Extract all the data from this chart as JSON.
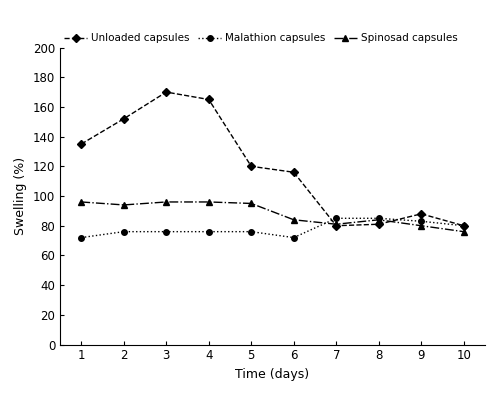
{
  "days": [
    1,
    2,
    3,
    4,
    5,
    6,
    7,
    8,
    9,
    10
  ],
  "unloaded": [
    135,
    152,
    170,
    165,
    120,
    116,
    80,
    81,
    88,
    80
  ],
  "malathion": [
    72,
    76,
    76,
    76,
    76,
    72,
    85,
    85,
    83,
    80
  ],
  "spinosad": [
    96,
    94,
    96,
    96,
    95,
    84,
    81,
    84,
    80,
    76
  ],
  "unloaded_label": "Unloaded capsules",
  "malathion_label": "Malathion capsules",
  "spinosad_label": "Spinosad capsules",
  "xlabel": "Time (days)",
  "ylabel": "Swelling (%)",
  "ylim": [
    0,
    200
  ],
  "xlim": [
    0.5,
    10.5
  ],
  "yticks": [
    0,
    20,
    40,
    60,
    80,
    100,
    120,
    140,
    160,
    180,
    200
  ],
  "xticks": [
    1,
    2,
    3,
    4,
    5,
    6,
    7,
    8,
    9,
    10
  ],
  "line_color": "black",
  "figsize": [
    5.0,
    3.96
  ],
  "dpi": 100
}
